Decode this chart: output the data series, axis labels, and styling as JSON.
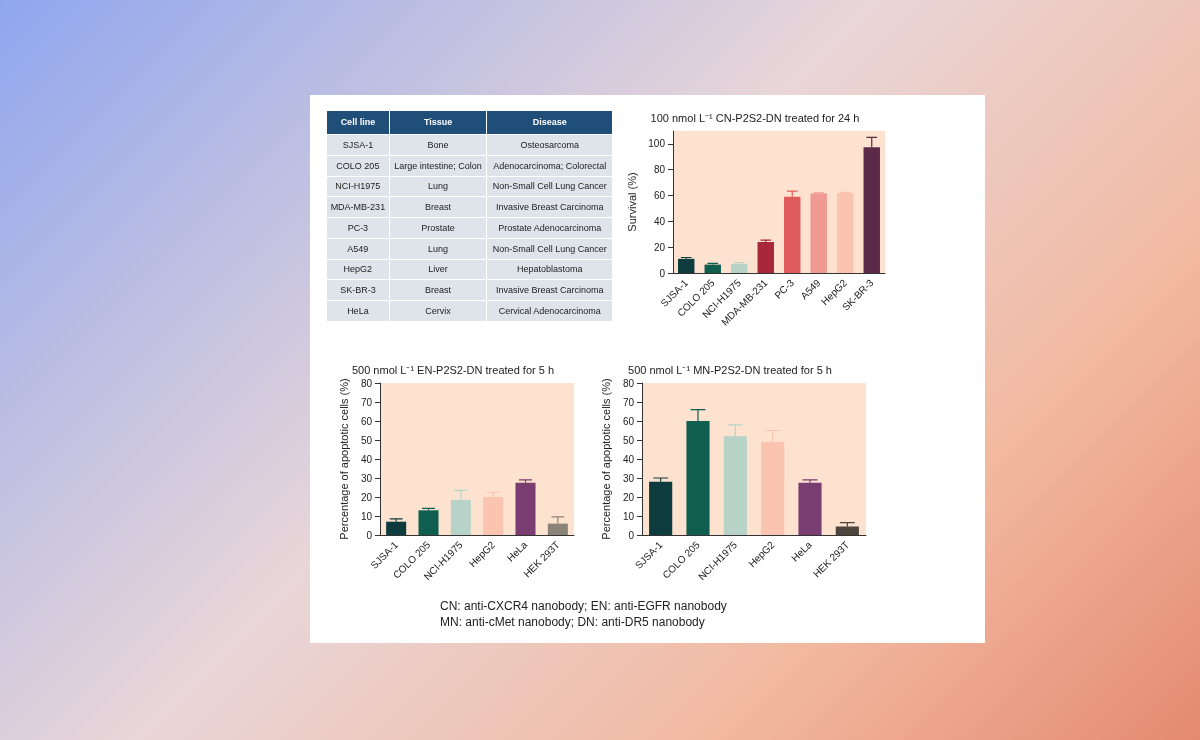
{
  "chart_data": [
    {
      "type": "other",
      "categories": [
        "Cell line",
        "Tissue",
        "Disease"
      ],
      "cell_labels": [
        [
          "SJSA-1",
          "Bone",
          "Osteosarcoma"
        ],
        [
          "COLO 205",
          "Large intestine; Colon",
          "Adenocarcinoma; Colorectal"
        ],
        [
          "NCI-H1975",
          "Lung",
          "Non-Small Cell Lung Cancer"
        ],
        [
          "MDA-MB-231",
          "Breast",
          "Invasive Breast Carcinoma"
        ],
        [
          "PC-3",
          "Prostate",
          "Prostate Adenocarcinoma"
        ],
        [
          "A549",
          "Lung",
          "Non-Small Cell Lung Cancer"
        ],
        [
          "HepG2",
          "Liver",
          "Hepatoblastoma"
        ],
        [
          "SK-BR-3",
          "Breast",
          "Invasive Breast Carcinoma"
        ],
        [
          "HeLa",
          "Cervix",
          "Cervical Adenocarcinoma"
        ]
      ],
      "annotations": [
        "CN: anti-CXCR4 nanobody; EN: anti-EGFR nanobody",
        "MN: anti-cMet nanobody; DN: anti-DR5 nanobody"
      ]
    },
    {
      "type": "bar",
      "title": "100 nmol L⁻¹ CN-P2S2-DN treated for 24 h",
      "ylabel": "Survival (%)",
      "categories": [
        "SJSA-1",
        "COLO 205",
        "NCI-H1975",
        "MDA-MB-231",
        "PC-3",
        "A549",
        "HepG2",
        "SK-BR-3"
      ],
      "values": [
        11,
        6.5,
        7,
        24,
        59,
        61.5,
        62,
        97.5
      ],
      "errors": [
        [
          11,
          12
        ],
        [
          6.5,
          7.5
        ],
        [
          7,
          8
        ],
        [
          24,
          25.5
        ],
        [
          59,
          63.5
        ],
        [
          61.5,
          62
        ],
        [
          62,
          62.5
        ],
        [
          97.5,
          105
        ]
      ],
      "colors": [
        "#0d3b3e",
        "#0f5e4f",
        "#b7d3c8",
        "#a8283a",
        "#e05b5b",
        "#ef9a93",
        "#fbc4b0",
        "#5a2a48"
      ],
      "ylim": [
        0,
        110
      ],
      "yticks": [
        0,
        20,
        40,
        60,
        80,
        100
      ],
      "grid": false
    },
    {
      "type": "bar",
      "title": "500 nmol L⁻¹ EN-P2S2-DN treated for 5 h",
      "ylabel": "Percentage of apoptotic cells (%)",
      "categories": [
        "SJSA-1",
        "COLO 205",
        "NCI-H1975",
        "HepG2",
        "HeLa",
        "HEK 293T"
      ],
      "values": [
        7,
        13,
        18.5,
        20,
        27.5,
        6
      ],
      "errors": [
        [
          7,
          8.5
        ],
        [
          13,
          14
        ],
        [
          18.5,
          23.5
        ],
        [
          20,
          22.5
        ],
        [
          27.5,
          29
        ],
        [
          6,
          9.5
        ]
      ],
      "colors": [
        "#0d3b3e",
        "#0f5e4f",
        "#b7d3c8",
        "#fbc4b0",
        "#7a3d72",
        "#8c8378"
      ],
      "ylim": [
        0,
        80
      ],
      "yticks": [
        0,
        10,
        20,
        30,
        40,
        50,
        60,
        70,
        80
      ],
      "grid": false
    },
    {
      "type": "bar",
      "title": "500 nmol L⁻¹ MN-P2S2-DN treated for 5 h",
      "ylabel": "Percentage of apoptotic cells (%)",
      "categories": [
        "SJSA-1",
        "COLO 205",
        "NCI-H1975",
        "HepG2",
        "HeLa",
        "HEK 293T"
      ],
      "values": [
        28,
        60,
        52,
        49,
        27.5,
        4.5
      ],
      "errors": [
        [
          28,
          30
        ],
        [
          60,
          66
        ],
        [
          52,
          58
        ],
        [
          49,
          55
        ],
        [
          27.5,
          29
        ],
        [
          4.5,
          6.5
        ]
      ],
      "colors": [
        "#0d3b3e",
        "#0f5e4f",
        "#b7d3c8",
        "#fbc4b0",
        "#7a3d72",
        "#4d443d"
      ],
      "ylim": [
        0,
        80
      ],
      "yticks": [
        0,
        10,
        20,
        30,
        40,
        50,
        60,
        70,
        80
      ],
      "grid": false
    }
  ]
}
